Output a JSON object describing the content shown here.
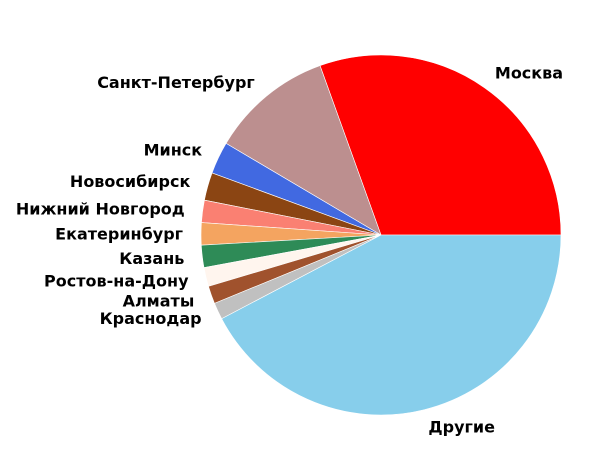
{
  "chart_data": {
    "type": "pie",
    "title": "",
    "start_angle_deg": 0,
    "direction": "counterclockwise",
    "legend": "none",
    "slices": [
      {
        "label": "Москва",
        "value": 30.5,
        "color": "#ff0000"
      },
      {
        "label": "Санкт-Петербург",
        "value": 11.0,
        "color": "#bc8f8f"
      },
      {
        "label": "Минск",
        "value": 2.9,
        "color": "#4169e1"
      },
      {
        "label": "Новосибирск",
        "value": 2.5,
        "color": "#8b4513"
      },
      {
        "label": "Нижний Новгород",
        "value": 2.0,
        "color": "#fa8072"
      },
      {
        "label": "Екатеринбург",
        "value": 2.0,
        "color": "#f4a460"
      },
      {
        "label": "Казань",
        "value": 2.0,
        "color": "#2e8b57"
      },
      {
        "label": "Ростов-на-Дону",
        "value": 1.7,
        "color": "#fff5ee"
      },
      {
        "label": "Алматы",
        "value": 1.6,
        "color": "#a0522d"
      },
      {
        "label": "Краснодар",
        "value": 1.5,
        "color": "#c0c0c0"
      },
      {
        "label": "Другие",
        "value": 42.3,
        "color": "#87ceeb"
      }
    ]
  }
}
